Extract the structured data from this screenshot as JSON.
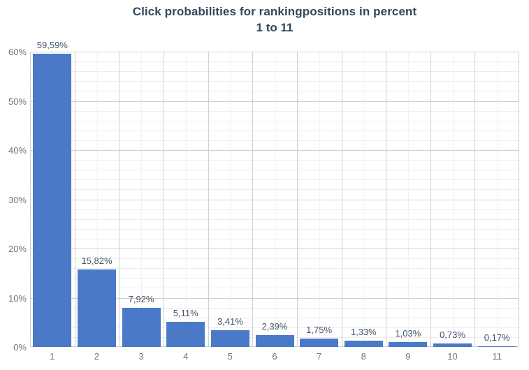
{
  "chart_data": {
    "type": "bar",
    "title": "Click probabilities for rankingpositions in percent",
    "subtitle": "1 to 11",
    "categories": [
      "1",
      "2",
      "3",
      "4",
      "5",
      "6",
      "7",
      "8",
      "9",
      "10",
      "11"
    ],
    "values": [
      59.59,
      15.82,
      7.92,
      5.11,
      3.41,
      2.39,
      1.75,
      1.33,
      1.03,
      0.73,
      0.17
    ],
    "bar_labels": [
      "59,59%",
      "15,82%",
      "7,92%",
      "5,11%",
      "3,41%",
      "2,39%",
      "1,75%",
      "1,33%",
      "1,03%",
      "0,73%",
      "0,17%"
    ],
    "xlabel": "",
    "ylabel": "",
    "ylim": [
      0,
      60
    ],
    "y_major_step": 10,
    "y_minor_step": 2,
    "y_tick_labels": [
      "0%",
      "10%",
      "20%",
      "30%",
      "40%",
      "50%",
      "60%"
    ],
    "grid": "major+minor",
    "legend": "none",
    "colors": {
      "background": "#FFFFFF",
      "bar": "#4979C7",
      "title": "#33475B",
      "bar_label": "#44546A",
      "axis_label": "#757575",
      "grid_major": "#D0D0D0",
      "grid_minor": "#EDEDED",
      "grid_minor_vertical": "#F2F2F2"
    }
  }
}
